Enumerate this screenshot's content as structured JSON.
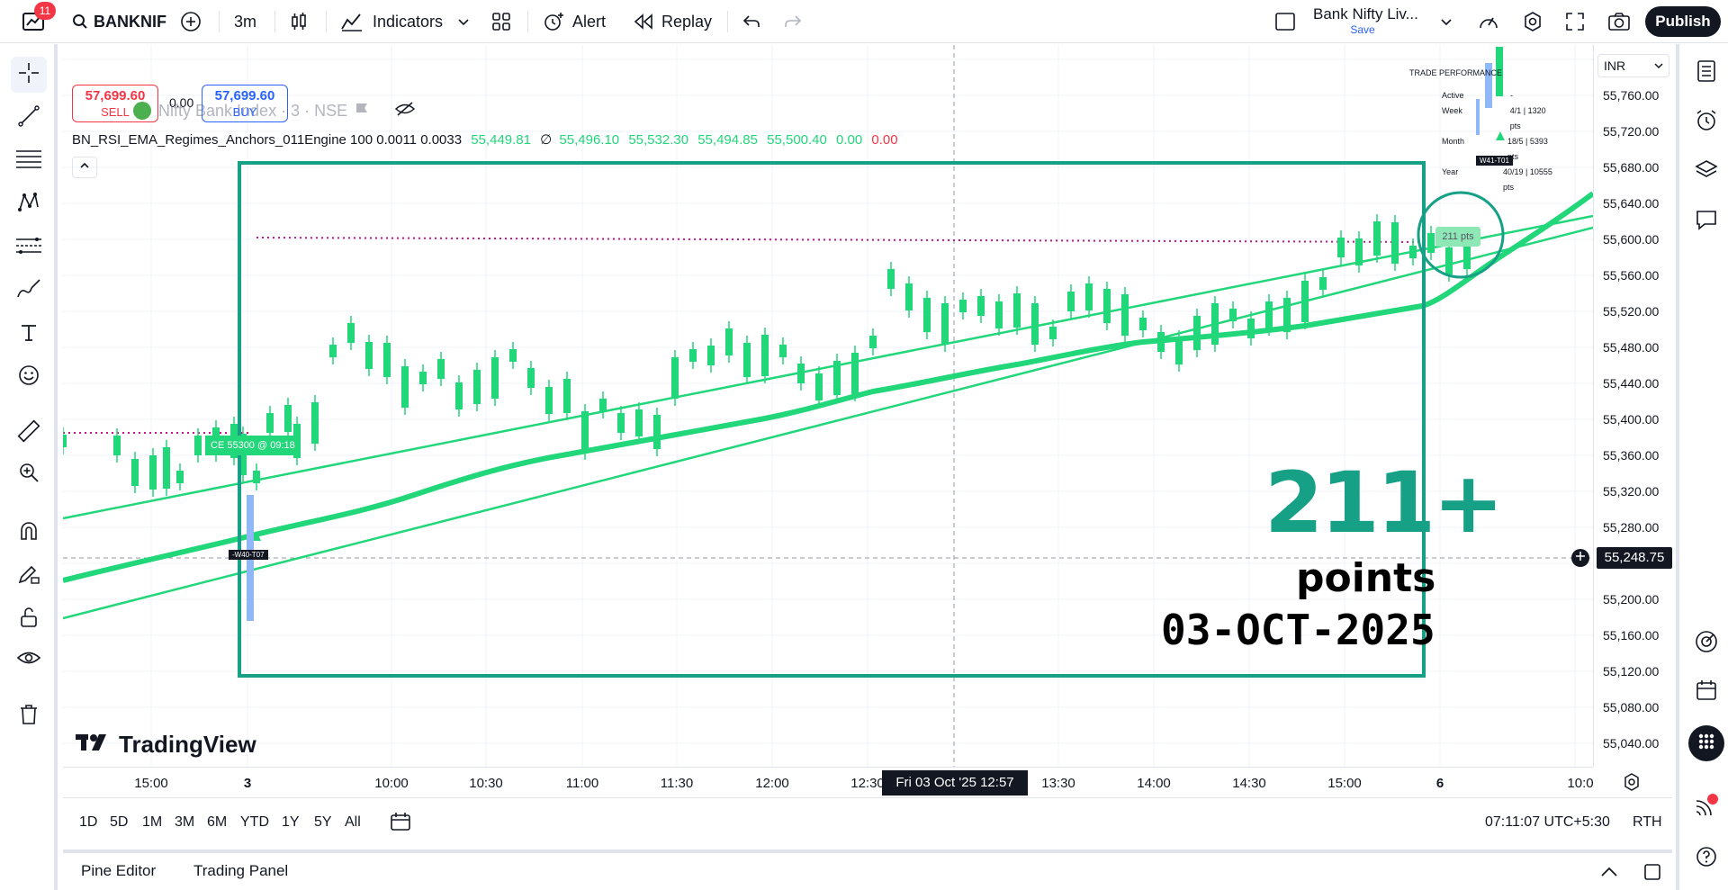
{
  "topbar": {
    "notification_count": "11",
    "symbol": "BANKNIF",
    "interval": "3m",
    "indicators_label": "Indicators",
    "alert_label": "Alert",
    "replay_label": "Replay",
    "layout_name": "Bank Nifty Liv...",
    "layout_save": "Save",
    "publish_label": "Publish"
  },
  "legend": {
    "title": "Nifty Bank Index · 3 · NSE",
    "sell_price": "57,699.60",
    "sell_label": "SELL",
    "spread": "0.00",
    "buy_price": "57,699.60",
    "buy_label": "BUY",
    "indicator_name": "BN_RSI_EMA_Regimes_Anchors_011Engine 100 0.0011 0.0033",
    "indicator_v1": "55,449.81",
    "indicator_sym": "∅",
    "indicator_v2": "55,496.10",
    "indicator_v3": "55,532.30",
    "indicator_v4": "55,494.85",
    "indicator_v5": "55,500.40",
    "indicator_v6": "0.00",
    "indicator_v7": "0.00"
  },
  "price_scale": {
    "currency": "INR",
    "ticks": [
      "55,760.00",
      "55,720.00",
      "55,680.00",
      "55,640.00",
      "55,600.00",
      "55,560.00",
      "55,520.00",
      "55,480.00",
      "55,440.00",
      "55,400.00",
      "55,360.00",
      "55,320.00",
      "55,280.00",
      "55,200.00",
      "55,160.00",
      "55,120.00",
      "55,080.00",
      "55,040.00"
    ],
    "current_price": "55,248.75"
  },
  "time_scale": {
    "ticks": [
      "15:00",
      "3",
      "10:00",
      "10:30",
      "11:00",
      "11:30",
      "12:00",
      "12:30",
      "13:30",
      "14:00",
      "14:30",
      "15:00",
      "6",
      "10:0"
    ],
    "crosshair_label": "Fri 03 Oct '25    12:57"
  },
  "trade_perf": {
    "title": "TRADE PERFORMANCE",
    "rows": [
      {
        "label": "Active",
        "value": "-"
      },
      {
        "label": "Week",
        "value": "4/1 | 1320 pts"
      },
      {
        "label": "Month",
        "value": "18/5 | 5393 pts"
      },
      {
        "label": "Year",
        "value": "40/19 | 10555 pts"
      }
    ]
  },
  "annotations": {
    "big_number": "211+",
    "points_word": "points",
    "date": "03-OCT-2025",
    "pts_badge": "211 pts",
    "ce_badge": "CE 55300 @ 09:18",
    "entry_tag": "-W40-T07",
    "exit_tag": "W41-T01",
    "watermark": "TradingView"
  },
  "range_bar": {
    "ranges": [
      "1D",
      "5D",
      "1M",
      "3M",
      "6M",
      "YTD",
      "1Y",
      "5Y",
      "All"
    ],
    "clock": "07:11:07 UTC+5:30",
    "session": "RTH"
  },
  "panel_bar": {
    "pine_editor": "Pine Editor",
    "trading_panel": "Trading Panel"
  },
  "colors": {
    "green": "#22d67a",
    "teal_box": "#16a085",
    "sell_red": "#f23645",
    "buy_blue": "#2962ff",
    "magenta_dotted": "#c71585"
  }
}
